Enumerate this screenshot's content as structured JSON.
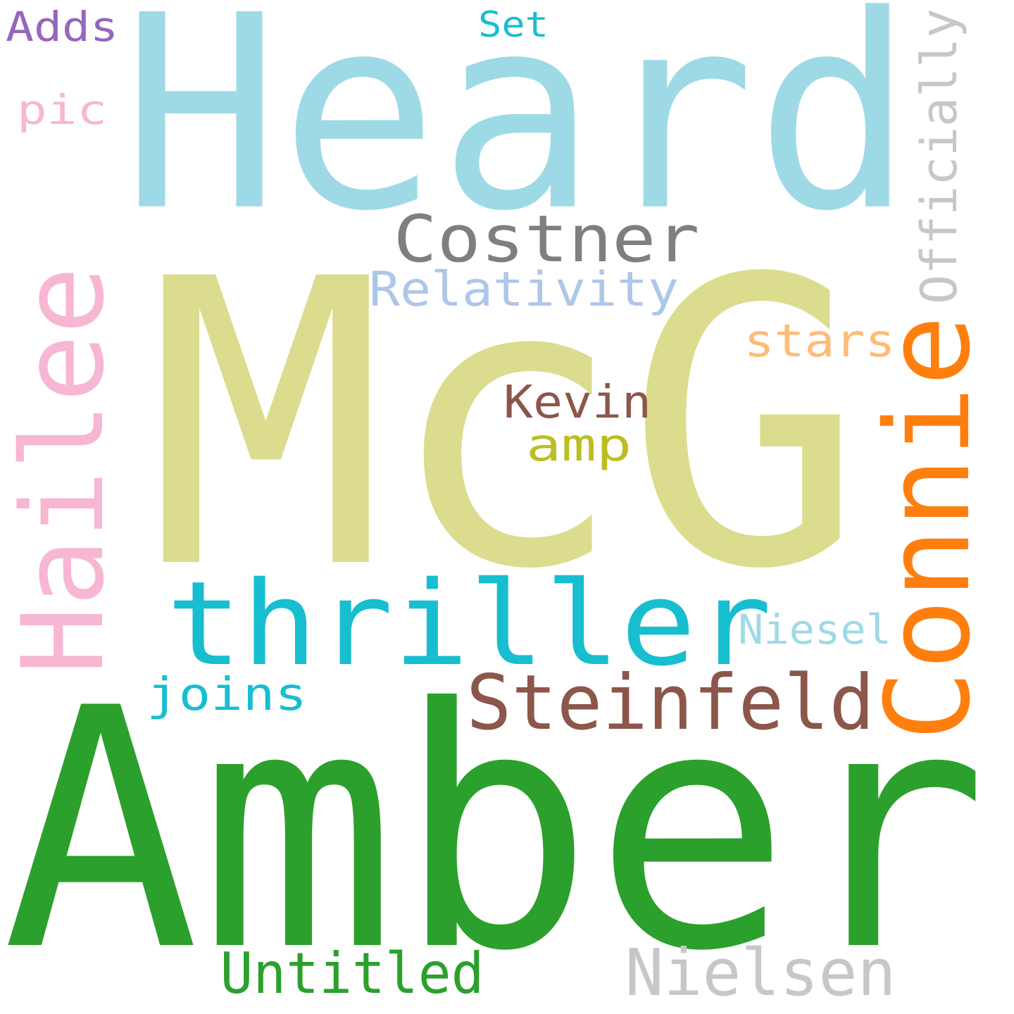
{
  "words": [
    {
      "text": "McG",
      "color": "#dbdc8e",
      "orientation": "horizontal"
    },
    {
      "text": "Amber",
      "color": "#2ca02c",
      "orientation": "horizontal"
    },
    {
      "text": "Heard",
      "color": "#9edae5",
      "orientation": "horizontal"
    },
    {
      "text": "thriller",
      "color": "#17becf",
      "orientation": "horizontal"
    },
    {
      "text": "Connie",
      "color": "#ff7f0e",
      "orientation": "vertical"
    },
    {
      "text": "Hailee",
      "color": "#f7b6d2",
      "orientation": "vertical"
    },
    {
      "text": "Steinfeld",
      "color": "#8c564b",
      "orientation": "horizontal"
    },
    {
      "text": "Costner",
      "color": "#7f7f7f",
      "orientation": "horizontal"
    },
    {
      "text": "Nielsen",
      "color": "#c7c7c7",
      "orientation": "horizontal"
    },
    {
      "text": "Untitled",
      "color": "#2ca02c",
      "orientation": "horizontal"
    },
    {
      "text": "Officially",
      "color": "#c7c7c7",
      "orientation": "vertical"
    },
    {
      "text": "Relativity",
      "color": "#aec7e8",
      "orientation": "horizontal"
    },
    {
      "text": "Kevin",
      "color": "#8c564b",
      "orientation": "horizontal"
    },
    {
      "text": "stars",
      "color": "#ffbb78",
      "orientation": "horizontal"
    },
    {
      "text": "Niesel",
      "color": "#9edae5",
      "orientation": "horizontal"
    },
    {
      "text": "joins",
      "color": "#17becf",
      "orientation": "horizontal"
    },
    {
      "text": "amp",
      "color": "#bcbd22",
      "orientation": "horizontal"
    },
    {
      "text": "Adds",
      "color": "#9467bd",
      "orientation": "horizontal"
    },
    {
      "text": "pic",
      "color": "#f7b6d2",
      "orientation": "horizontal"
    },
    {
      "text": "Set",
      "color": "#17becf",
      "orientation": "horizontal"
    }
  ]
}
